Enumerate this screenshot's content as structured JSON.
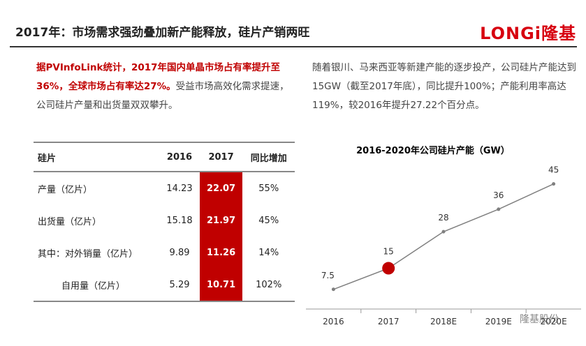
{
  "header": {
    "title": "2017年：市场需求强劲叠加新产能释放，硅片产销两旺",
    "logo_en": "LONGi",
    "logo_cn": "隆基"
  },
  "left_text": {
    "highlight": "据PVInfoLink统计，2017年国内单晶市场占有率提升至36%，全球市场占有率达27%。",
    "normal": "受益市场高效化需求提速，公司硅片产量和出货量双双攀升。"
  },
  "right_text": "随着银川、马来西亚等新建产能的逐步投产，公司硅片产能达到15GW（截至2017年底），同比提升100%；产能利用率高达119%，较2016年提升27.22个百分点。",
  "table": {
    "header": [
      "硅片",
      "2016",
      "2017",
      "同比增加"
    ],
    "rows": [
      [
        "产量（亿片）",
        "14.23",
        "22.07",
        "55%"
      ],
      [
        "出货量（亿片）",
        "15.18",
        "21.97",
        "45%"
      ],
      [
        "其中：对外销量（亿片）",
        "9.89",
        "11.26",
        "14%"
      ],
      [
        "自用量（亿片）",
        "5.29",
        "10.71",
        "102%"
      ]
    ]
  },
  "chart_data": {
    "type": "line",
    "title": "2016-2020年公司硅片产能（GW）",
    "categories": [
      "2016",
      "2017",
      "2018E",
      "2019E",
      "2020E"
    ],
    "values": [
      7.5,
      15,
      28,
      36,
      45
    ],
    "color": "#7f7f7f",
    "highlight": "2017",
    "highlight_color": "#c00000"
  },
  "watermark": "隆基股份"
}
